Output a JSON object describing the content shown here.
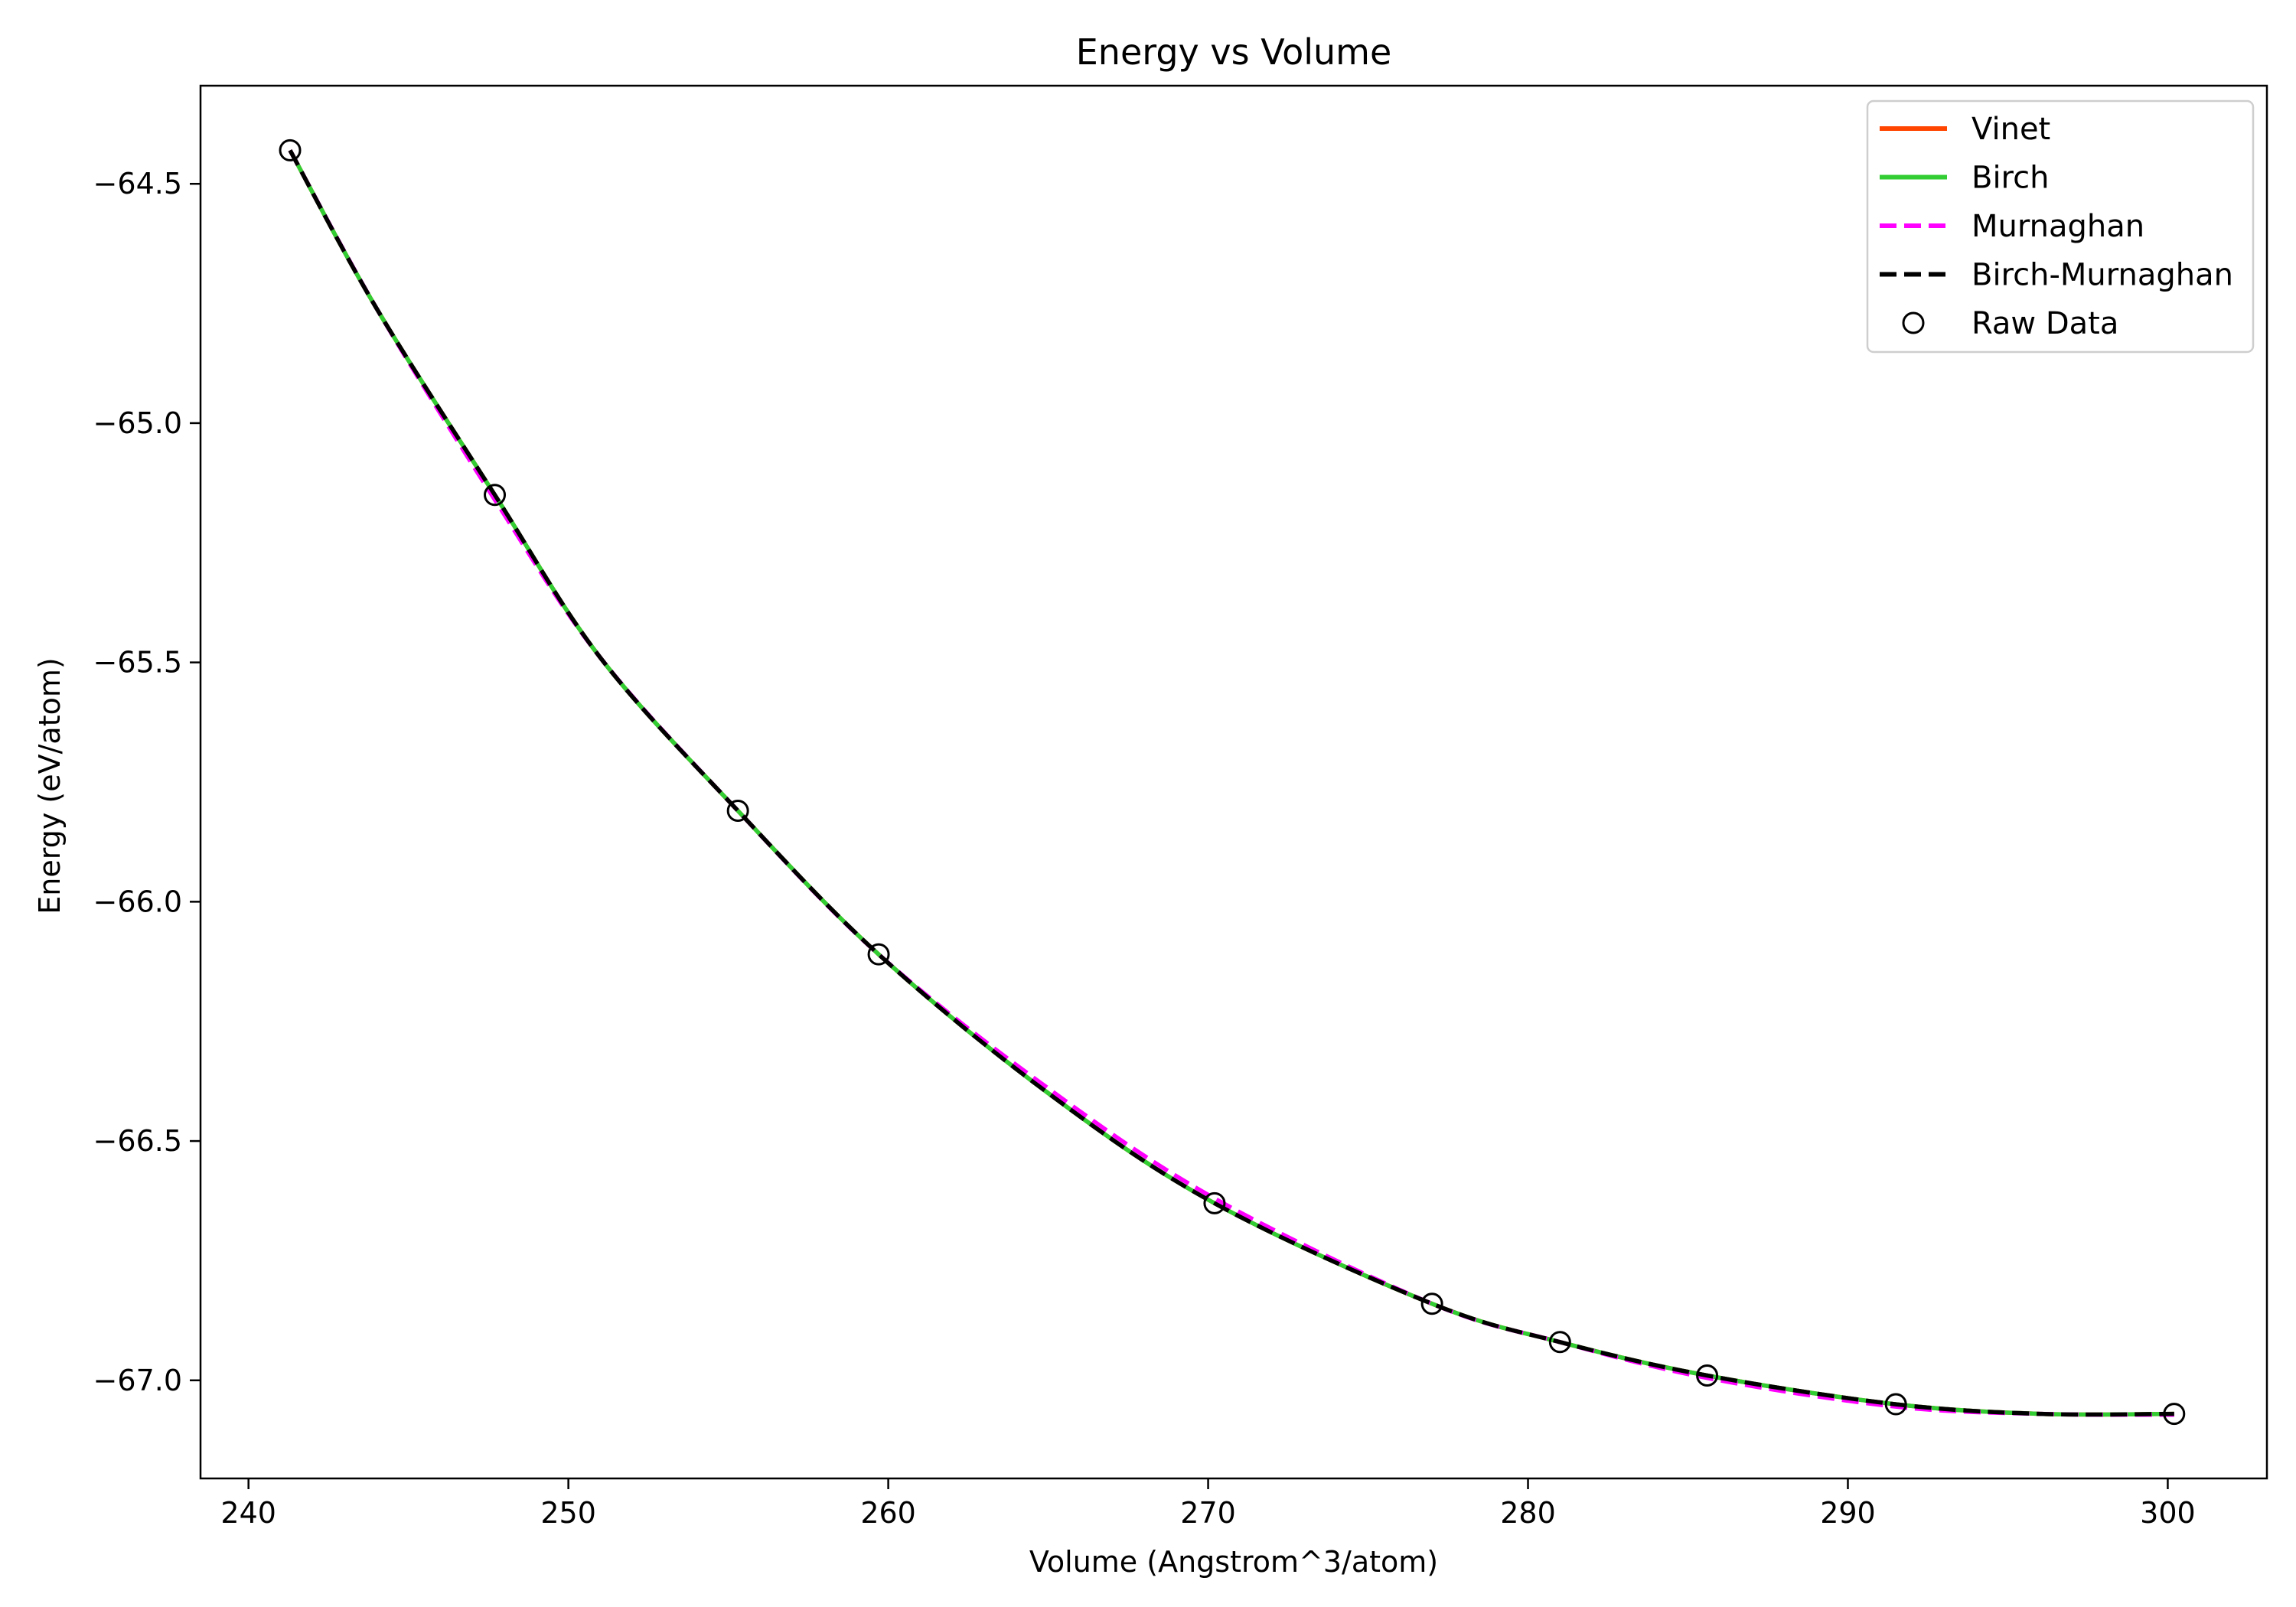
{
  "chart_data": {
    "type": "line",
    "title": "Energy vs Volume",
    "xlabel": "Volume (Angstrom^3/atom)",
    "ylabel": "Energy (eV/atom)",
    "xlim": [
      238.5,
      303.1
    ],
    "ylim": [
      -67.205,
      -64.295
    ],
    "xticks": [
      240,
      250,
      260,
      270,
      280,
      290,
      300
    ],
    "yticks": [
      -64.5,
      -65.0,
      -65.5,
      -66.0,
      -66.5,
      -67.0
    ],
    "xtick_labels": [
      "240",
      "250",
      "260",
      "270",
      "280",
      "290",
      "300"
    ],
    "ytick_labels": [
      "−64.5",
      "−65.0",
      "−65.5",
      "−66.0",
      "−66.5",
      "−67.0"
    ],
    "grid": false,
    "legend_position": "top-right",
    "raw_data": {
      "name": "Raw Data",
      "x": [
        241.3,
        247.7,
        255.3,
        259.7,
        270.2,
        277.0,
        281.0,
        285.6,
        291.5,
        300.2
      ],
      "y": [
        -64.43,
        -65.15,
        -65.81,
        -66.11,
        -66.63,
        -66.84,
        -66.92,
        -66.99,
        -67.05,
        -67.07
      ]
    },
    "series": [
      {
        "name": "Vinet",
        "color": "#ff4500",
        "style": "solid",
        "x": [
          241.3,
          244.0,
          247.7,
          251.0,
          255.3,
          259.7,
          265.0,
          270.2,
          277.0,
          281.0,
          285.6,
          291.5,
          296.0,
          300.2
        ],
        "y": [
          -64.43,
          -64.76,
          -65.15,
          -65.49,
          -65.81,
          -66.11,
          -66.4,
          -66.63,
          -66.84,
          -66.92,
          -66.99,
          -67.05,
          -67.07,
          -67.07
        ]
      },
      {
        "name": "Birch",
        "color": "#32cd32",
        "style": "solid",
        "x": [
          241.3,
          244.0,
          247.7,
          251.0,
          255.3,
          259.7,
          265.0,
          270.2,
          277.0,
          281.0,
          285.6,
          291.5,
          296.0,
          300.2
        ],
        "y": [
          -64.43,
          -64.76,
          -65.15,
          -65.49,
          -65.81,
          -66.11,
          -66.4,
          -66.63,
          -66.84,
          -66.92,
          -66.99,
          -67.05,
          -67.07,
          -67.07
        ]
      },
      {
        "name": "Murnaghan",
        "color": "#ff00ff",
        "style": "dashed",
        "x": [
          241.3,
          244.0,
          247.7,
          251.0,
          255.3,
          259.7,
          265.0,
          270.2,
          277.0,
          281.0,
          285.6,
          291.5,
          296.0,
          300.2
        ],
        "y": [
          -64.43,
          -64.76,
          -65.16,
          -65.49,
          -65.81,
          -66.11,
          -66.39,
          -66.62,
          -66.84,
          -66.92,
          -66.995,
          -67.055,
          -67.07,
          -67.072
        ]
      },
      {
        "name": "Birch-Murnaghan",
        "color": "#000000",
        "style": "dashed",
        "x": [
          241.3,
          244.0,
          247.7,
          251.0,
          255.3,
          259.7,
          265.0,
          270.2,
          277.0,
          281.0,
          285.6,
          291.5,
          296.0,
          300.2
        ],
        "y": [
          -64.43,
          -64.76,
          -65.15,
          -65.49,
          -65.81,
          -66.11,
          -66.4,
          -66.63,
          -66.84,
          -66.92,
          -66.99,
          -67.05,
          -67.07,
          -67.07
        ]
      }
    ]
  }
}
